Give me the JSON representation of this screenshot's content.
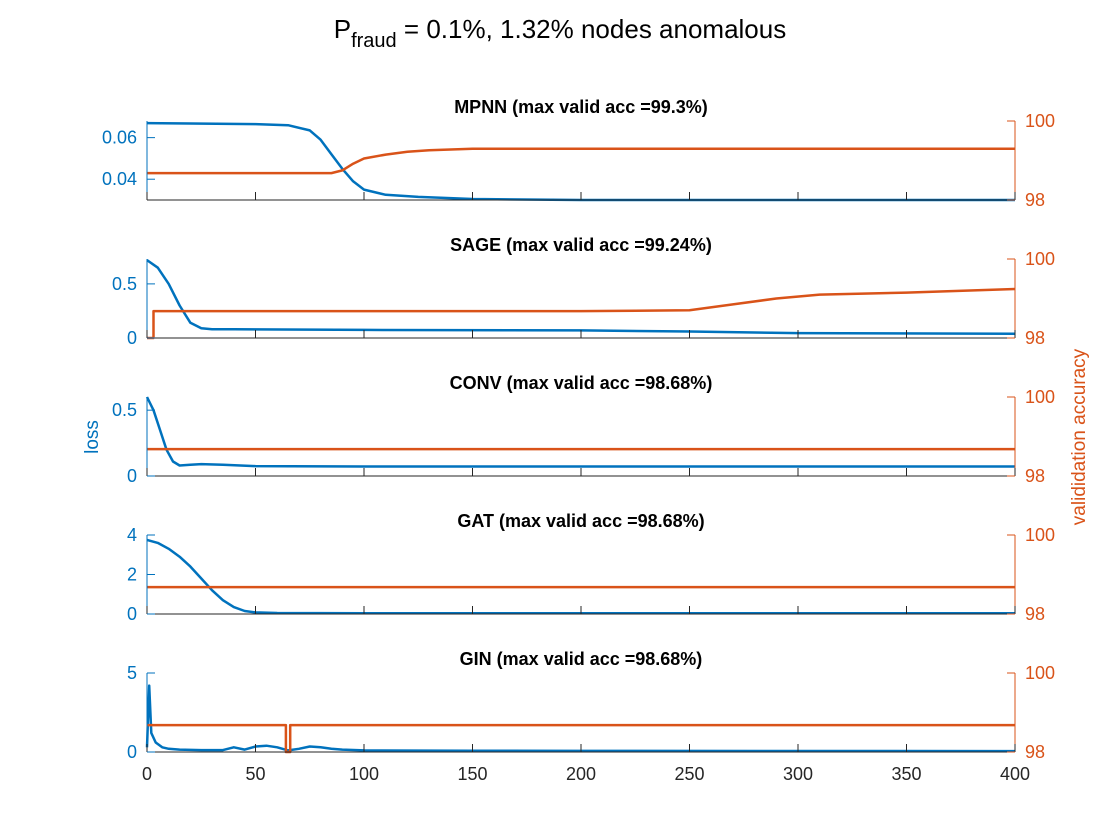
{
  "figure": {
    "title_main": "P",
    "title_sub": "fraud",
    "title_rest": " = 0.1%, 1.32% nodes anomalous",
    "left_ylabel": "loss",
    "right_ylabel": "valididation accuracy"
  },
  "colors": {
    "loss": "#0072BD",
    "accuracy": "#D95319",
    "axis": "#262626"
  },
  "chart_data": [
    {
      "type": "line",
      "title": "MPNN (max valid acc =99.3%)",
      "xlim": [
        0,
        400
      ],
      "y_left_lim": [
        0.03,
        0.068
      ],
      "y_left_ticks": [
        0.04,
        0.06
      ],
      "y_left_ticklabels": [
        "0.04",
        "0.06"
      ],
      "y_right_lim": [
        98,
        100
      ],
      "y_right_ticks": [
        98,
        100
      ],
      "series": [
        {
          "axis": "left",
          "x": [
            0,
            20,
            50,
            65,
            75,
            80,
            85,
            90,
            95,
            100,
            110,
            125,
            150,
            200,
            300,
            400
          ],
          "y": [
            0.067,
            0.0668,
            0.0665,
            0.066,
            0.0635,
            0.059,
            0.052,
            0.045,
            0.039,
            0.035,
            0.0325,
            0.0315,
            0.0305,
            0.03,
            0.03,
            0.03
          ]
        },
        {
          "axis": "right",
          "x": [
            0,
            85,
            90,
            95,
            100,
            110,
            120,
            130,
            150,
            200,
            400
          ],
          "y": [
            98.68,
            98.68,
            98.75,
            98.92,
            99.05,
            99.15,
            99.22,
            99.26,
            99.3,
            99.3,
            99.3
          ]
        }
      ]
    },
    {
      "type": "line",
      "title": "SAGE (max valid acc =99.24%)",
      "xlim": [
        0,
        400
      ],
      "y_left_lim": [
        0,
        0.73
      ],
      "y_left_ticks": [
        0,
        0.5
      ],
      "y_left_ticklabels": [
        "0",
        "0.5"
      ],
      "y_right_lim": [
        98,
        100
      ],
      "y_right_ticks": [
        98,
        100
      ],
      "series": [
        {
          "axis": "left",
          "x": [
            0,
            5,
            10,
            15,
            20,
            25,
            30,
            40,
            100,
            200,
            250,
            300,
            400
          ],
          "y": [
            0.72,
            0.65,
            0.5,
            0.3,
            0.14,
            0.09,
            0.08,
            0.08,
            0.075,
            0.07,
            0.06,
            0.045,
            0.04
          ]
        },
        {
          "axis": "right",
          "x": [
            0,
            3,
            3.01,
            100,
            200,
            250,
            270,
            290,
            310,
            350,
            400
          ],
          "y": [
            98,
            98,
            98.68,
            98.68,
            98.68,
            98.7,
            98.85,
            99.0,
            99.1,
            99.15,
            99.24
          ]
        }
      ]
    },
    {
      "type": "line",
      "title": "CONV (max valid acc =98.68%)",
      "xlim": [
        0,
        400
      ],
      "y_left_lim": [
        0,
        0.6
      ],
      "y_left_ticks": [
        0,
        0.5
      ],
      "y_left_ticklabels": [
        "0",
        "0.5"
      ],
      "y_right_lim": [
        98,
        100
      ],
      "y_right_ticks": [
        98,
        100
      ],
      "series": [
        {
          "axis": "left",
          "x": [
            0,
            3,
            6,
            9,
            12,
            15,
            20,
            25,
            35,
            50,
            100,
            200,
            300,
            400
          ],
          "y": [
            0.6,
            0.5,
            0.35,
            0.2,
            0.11,
            0.08,
            0.085,
            0.09,
            0.085,
            0.075,
            0.072,
            0.072,
            0.072,
            0.072
          ]
        },
        {
          "axis": "right",
          "x": [
            0,
            400
          ],
          "y": [
            98.68,
            98.68
          ]
        }
      ]
    },
    {
      "type": "line",
      "title": "GAT (max valid acc =98.68%)",
      "xlim": [
        0,
        400
      ],
      "y_left_lim": [
        0,
        4
      ],
      "y_left_ticks": [
        0,
        2,
        4
      ],
      "y_left_ticklabels": [
        "0",
        "2",
        "4"
      ],
      "y_right_lim": [
        98,
        100
      ],
      "y_right_ticks": [
        98,
        100
      ],
      "series": [
        {
          "axis": "left",
          "x": [
            0,
            5,
            10,
            15,
            20,
            25,
            30,
            35,
            40,
            45,
            50,
            60,
            100,
            200,
            400
          ],
          "y": [
            3.75,
            3.6,
            3.3,
            2.9,
            2.4,
            1.8,
            1.2,
            0.7,
            0.35,
            0.15,
            0.08,
            0.05,
            0.04,
            0.04,
            0.04
          ]
        },
        {
          "axis": "right",
          "x": [
            0,
            400
          ],
          "y": [
            98.68,
            98.68
          ]
        }
      ]
    },
    {
      "type": "line",
      "title": "GIN (max valid acc =98.68%)",
      "xlim": [
        0,
        400
      ],
      "y_left_lim": [
        0,
        5
      ],
      "y_left_ticks": [
        0,
        5
      ],
      "y_left_ticklabels": [
        "0",
        "5"
      ],
      "y_right_lim": [
        98,
        100
      ],
      "y_right_ticks": [
        98,
        100
      ],
      "series": [
        {
          "axis": "left",
          "x": [
            0,
            1,
            2,
            4,
            7,
            10,
            15,
            25,
            35,
            40,
            45,
            50,
            55,
            60,
            65,
            70,
            75,
            80,
            85,
            90,
            100,
            150,
            200,
            400
          ],
          "y": [
            0.3,
            4.2,
            1.2,
            0.6,
            0.3,
            0.2,
            0.15,
            0.12,
            0.12,
            0.3,
            0.15,
            0.35,
            0.4,
            0.3,
            0.1,
            0.2,
            0.35,
            0.3,
            0.2,
            0.15,
            0.1,
            0.08,
            0.07,
            0.06
          ]
        },
        {
          "axis": "right",
          "x": [
            0,
            1,
            1.01,
            64,
            64.01,
            66,
            66.01,
            400
          ],
          "y": [
            98.68,
            98.68,
            98.68,
            98.68,
            98,
            98,
            98.68,
            98.68
          ]
        }
      ]
    }
  ],
  "x_ticks": [
    0,
    50,
    100,
    150,
    200,
    250,
    300,
    350,
    400
  ],
  "right_ticklabels": [
    "98",
    "100"
  ]
}
